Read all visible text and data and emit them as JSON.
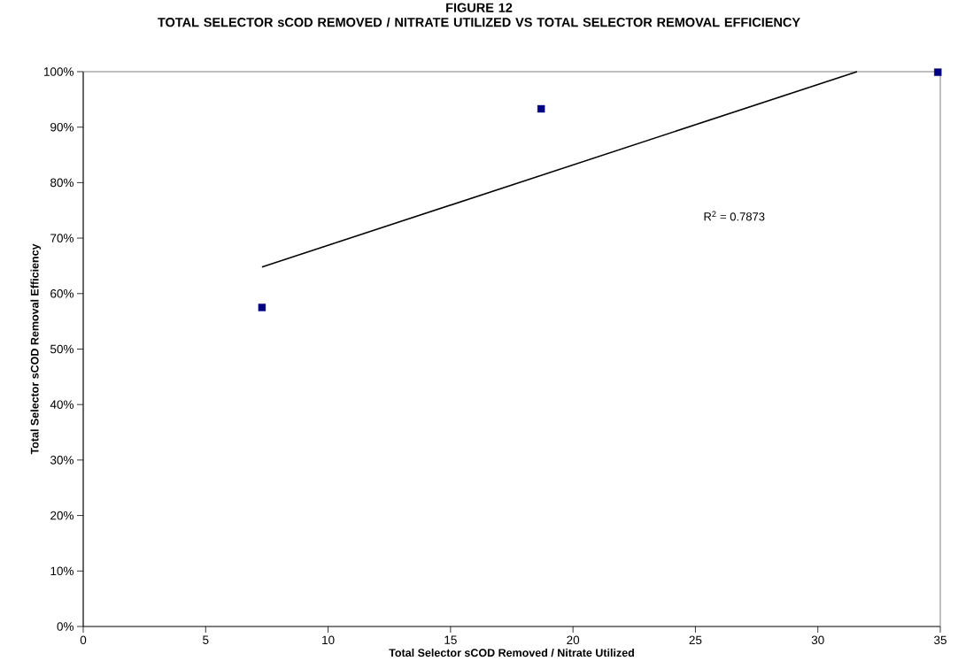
{
  "chart_data": {
    "type": "scatter",
    "title": "FIGURE 12",
    "subtitle": "TOTAL SELECTOR sCOD REMOVED / NITRATE UTILIZED VS TOTAL SELECTOR REMOVAL EFFICIENCY",
    "xlabel": "Total Selector sCOD Removed / Nitrate Utilized",
    "ylabel": "Total Selector sCOD Removal Efficiency",
    "xlim": [
      0,
      35
    ],
    "xticks": [
      0,
      5,
      10,
      15,
      20,
      25,
      30,
      35
    ],
    "ylim": [
      0,
      100
    ],
    "yticks": [
      {
        "value": 0,
        "label": "0%"
      },
      {
        "value": 10,
        "label": "10%"
      },
      {
        "value": 20,
        "label": "20%"
      },
      {
        "value": 30,
        "label": "30%"
      },
      {
        "value": 40,
        "label": "40%"
      },
      {
        "value": 50,
        "label": "50%"
      },
      {
        "value": 60,
        "label": "60%"
      },
      {
        "value": 70,
        "label": "70%"
      },
      {
        "value": 80,
        "label": "80%"
      },
      {
        "value": 90,
        "label": "90%"
      },
      {
        "value": 100,
        "label": "100%"
      }
    ],
    "annotations": [
      "R$^{2}$ = 0.7873"
    ],
    "series": [
      {
        "color": "#000080",
        "marker": "square",
        "x": [
          7.3,
          18.7,
          34.9
        ],
        "values": [
          57.5,
          93.3,
          99.9
        ]
      },
      {
        "type": "line",
        "color": "#000000",
        "line_style": "solid",
        "x": [
          7.3,
          31.6
        ],
        "values": [
          64.8,
          100
        ]
      }
    ]
  }
}
